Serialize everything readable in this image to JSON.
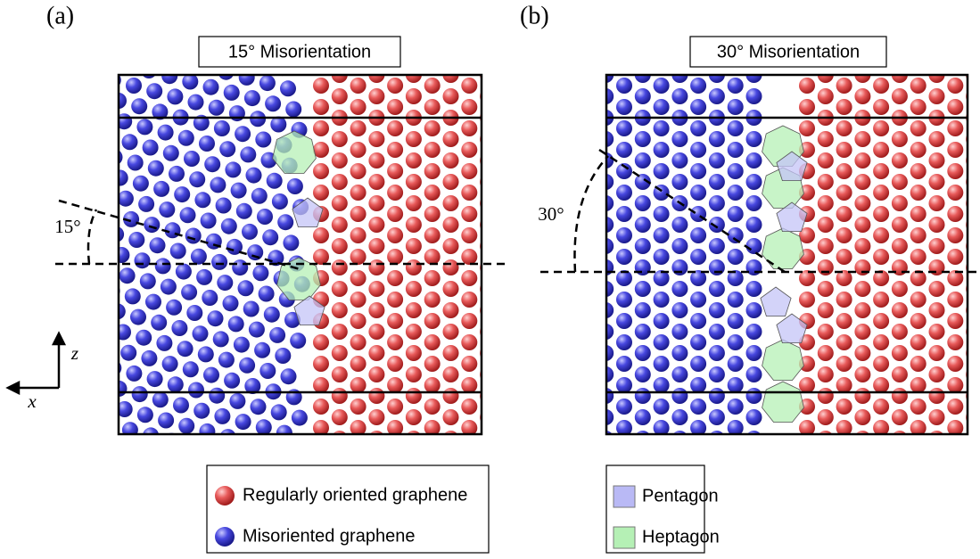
{
  "panels": [
    {
      "label": "(a)",
      "title": "15° Misorientation",
      "angle_label": "15°"
    },
    {
      "label": "(b)",
      "title": "30° Misorientation",
      "angle_label": "30°"
    }
  ],
  "axes": {
    "z": "z",
    "x": "x"
  },
  "legend_atoms": [
    "Regularly oriented graphene",
    "Misoriented graphene"
  ],
  "legend_defects": [
    "Pentagon",
    "Heptagon"
  ]
}
